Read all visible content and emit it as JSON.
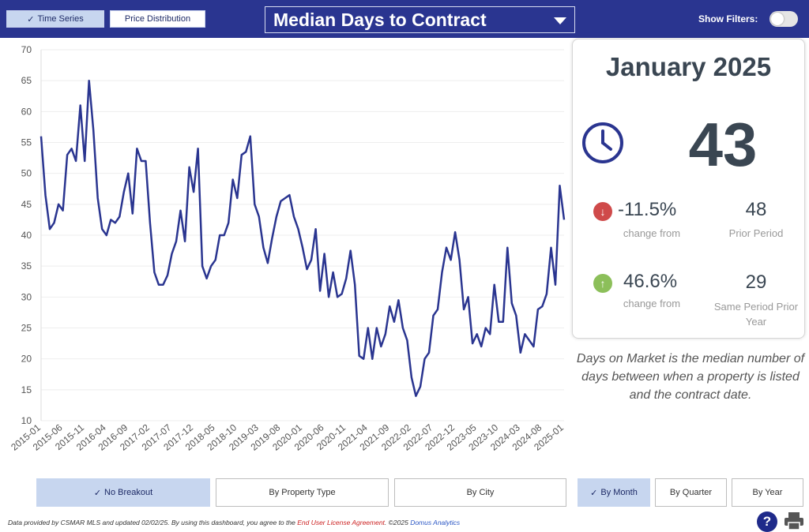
{
  "header": {
    "tab_time_series": "Time Series",
    "tab_price_distribution": "Price Distribution",
    "metric_select": "Median Days to Contract",
    "show_filters_label": "Show Filters:",
    "show_filters_on": false
  },
  "card": {
    "period": "January 2025",
    "value": "43",
    "change1_pct": "-11.5%",
    "change1_label": "change from",
    "prior_value": "48",
    "prior_label": "Prior Period",
    "change2_pct": "46.6%",
    "change2_label": "change from",
    "prior_year_value": "29",
    "prior_year_label": "Same Period Prior Year"
  },
  "description": "Days on Market is the median number of days between when a property is listed and the contract date.",
  "breakdown": {
    "no_breakout": "No Breakout",
    "by_property_type": "By Property Type",
    "by_city": "By City"
  },
  "interval": {
    "by_month": "By Month",
    "by_quarter": "By Quarter",
    "by_year": "By Year"
  },
  "footer": {
    "text1": "Data provided by CSMAR MLS and updated 02/02/25.  By using this dashboard, you agree to the ",
    "link": "End User License Agreement",
    "text2": ".  ©2025 ",
    "brand": "Domus Analytics"
  },
  "colors": {
    "header_bg": "#2a3590",
    "line": "#2a3590",
    "active_btn": "#c7d6ef",
    "down_badge": "#cf4a4a",
    "up_badge": "#8cbf5a"
  },
  "chart_data": {
    "type": "line",
    "ylim": [
      10,
      70
    ],
    "yticks": [
      10,
      15,
      20,
      25,
      30,
      35,
      40,
      45,
      50,
      55,
      60,
      65,
      70
    ],
    "xtick_labels": [
      "2015-01",
      "2015-06",
      "2015-11",
      "2016-04",
      "2016-09",
      "2017-02",
      "2017-07",
      "2017-12",
      "2018-05",
      "2018-10",
      "2019-03",
      "2019-08",
      "2020-01",
      "2020-06",
      "2020-11",
      "2021-04",
      "2021-09",
      "2022-02",
      "2022-07",
      "2022-12",
      "2023-05",
      "2023-10",
      "2024-03",
      "2024-08",
      "2025-01"
    ],
    "start_month": "2015-01",
    "series": [
      {
        "values": [
          56,
          46.5,
          41,
          42,
          45,
          44,
          53,
          54,
          52,
          61,
          52,
          65,
          57,
          46,
          41,
          40,
          42.5,
          42,
          43,
          47,
          50,
          43.5,
          54,
          52,
          52,
          42,
          34,
          32,
          32,
          33.5,
          37,
          39,
          44,
          39,
          51,
          47,
          54,
          35,
          33,
          35,
          36,
          40,
          40,
          42,
          49,
          46,
          53,
          53.5,
          56,
          45,
          43,
          38,
          35.5,
          39.5,
          43,
          45.5,
          46,
          46.5,
          43,
          41,
          38,
          34.5,
          36,
          41,
          31,
          37,
          30,
          34,
          30,
          30.5,
          33,
          37.5,
          32,
          20.5,
          20,
          25,
          20,
          25,
          22,
          24,
          28.5,
          26,
          29.5,
          25,
          23,
          17,
          14,
          15.5,
          20,
          21,
          27,
          28,
          34,
          38,
          36,
          40.5,
          36,
          28,
          30,
          22.5,
          24,
          22,
          25,
          24,
          32,
          26,
          26,
          38,
          29,
          27,
          21,
          24,
          23,
          22,
          28,
          28.5,
          30.5,
          38,
          32,
          48,
          42.5
        ]
      }
    ]
  }
}
